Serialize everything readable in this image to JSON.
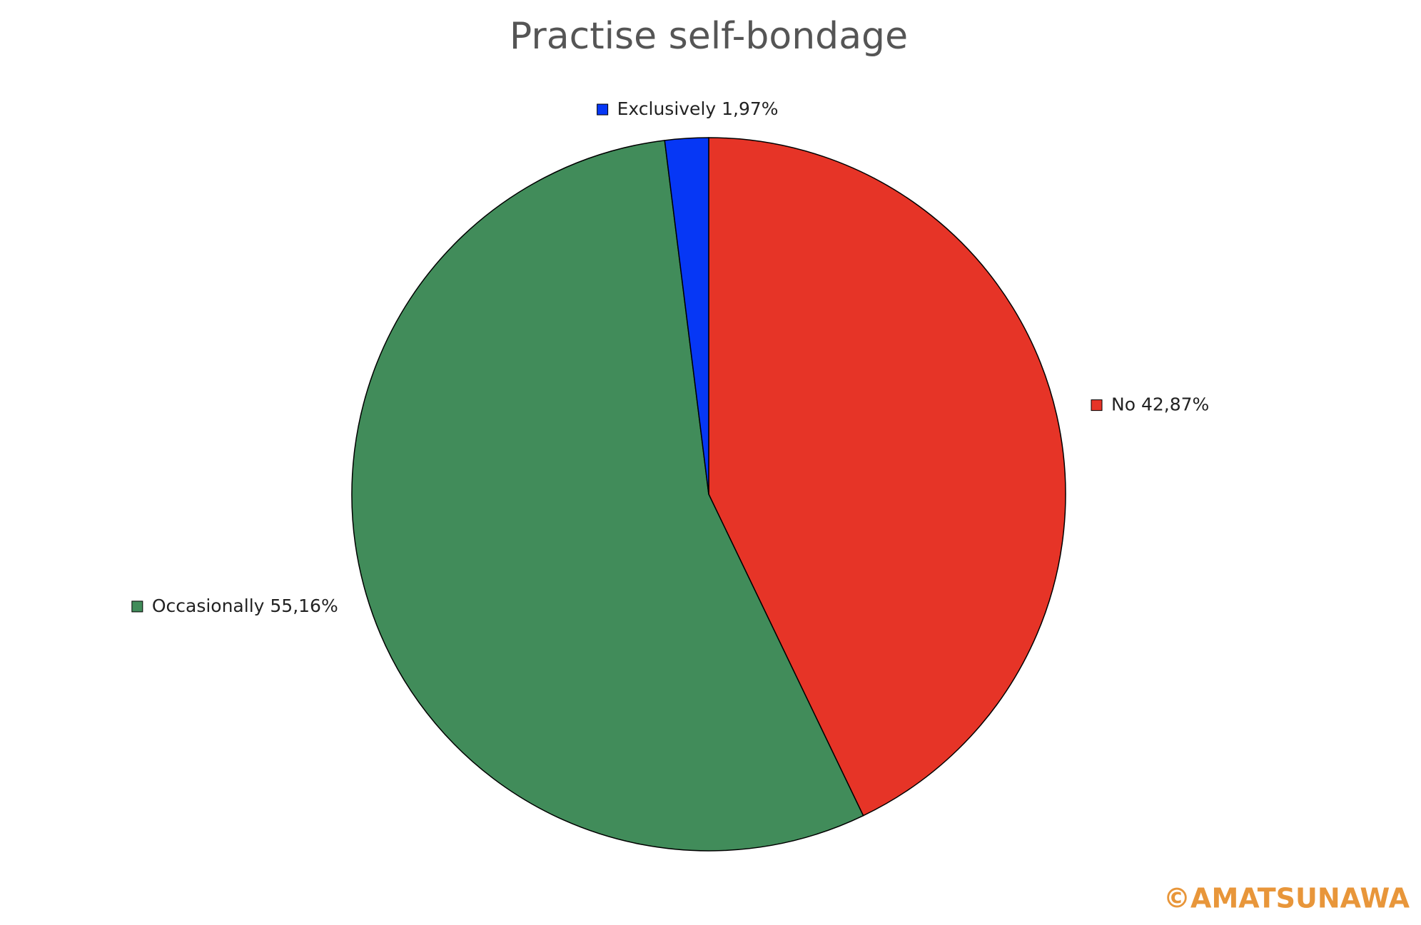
{
  "chart_data": {
    "type": "pie",
    "title": "Practise self-bondage",
    "categories": [
      "No",
      "Occasionally",
      "Exclusively"
    ],
    "values": [
      42.87,
      55.16,
      1.97
    ],
    "value_labels": [
      "42,87%",
      "55,16%",
      "1,97%"
    ],
    "colors": [
      "#e63427",
      "#418c5a",
      "#0637f5"
    ],
    "watermark": "©AMATSUNAWA"
  }
}
